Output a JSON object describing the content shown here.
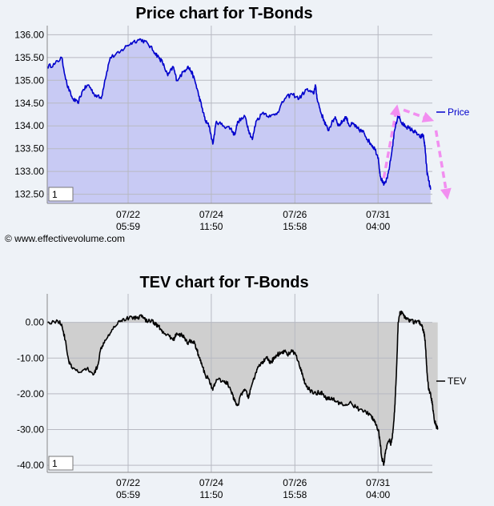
{
  "copyright": "© www.effectivevolume.com",
  "chart_data": [
    {
      "type": "area",
      "title": "Price chart for T-Bonds",
      "series": [
        {
          "name": "Price",
          "color": "#0000cc",
          "fill": "#c8caf4"
        }
      ],
      "ylim": [
        132.3,
        136.2
      ],
      "yticks": [
        "136.00",
        "135.50",
        "135.00",
        "134.50",
        "134.00",
        "133.50",
        "133.00",
        "132.50"
      ],
      "ytick_values": [
        136.0,
        135.5,
        135.0,
        134.5,
        134.0,
        133.5,
        133.0,
        132.5
      ],
      "xticks": [
        {
          "date": "07/22",
          "time": "05:59",
          "t": 0.21
        },
        {
          "date": "07/24",
          "time": "11:50",
          "t": 0.426
        },
        {
          "date": "07/26",
          "time": "15:58",
          "t": 0.643
        },
        {
          "date": "07/31",
          "time": "04:00",
          "t": 0.859
        }
      ],
      "input_value": "1",
      "keypoints": [
        [
          0,
          135.3
        ],
        [
          0.02,
          135.35
        ],
        [
          0.04,
          135.5
        ],
        [
          0.055,
          134.9
        ],
        [
          0.07,
          134.6
        ],
        [
          0.085,
          134.5
        ],
        [
          0.1,
          134.8
        ],
        [
          0.115,
          134.9
        ],
        [
          0.13,
          134.7
        ],
        [
          0.15,
          134.6
        ],
        [
          0.16,
          135.0
        ],
        [
          0.175,
          135.5
        ],
        [
          0.2,
          135.6
        ],
        [
          0.22,
          135.75
        ],
        [
          0.24,
          135.85
        ],
        [
          0.26,
          135.9
        ],
        [
          0.28,
          135.8
        ],
        [
          0.3,
          135.6
        ],
        [
          0.31,
          135.5
        ],
        [
          0.32,
          135.4
        ],
        [
          0.335,
          135.1
        ],
        [
          0.35,
          135.3
        ],
        [
          0.36,
          135.0
        ],
        [
          0.38,
          135.2
        ],
        [
          0.39,
          135.3
        ],
        [
          0.4,
          135.2
        ],
        [
          0.41,
          135.0
        ],
        [
          0.42,
          134.7
        ],
        [
          0.43,
          134.4
        ],
        [
          0.44,
          134.1
        ],
        [
          0.45,
          134.0
        ],
        [
          0.46,
          133.6
        ],
        [
          0.47,
          134.1
        ],
        [
          0.49,
          134.0
        ],
        [
          0.51,
          133.95
        ],
        [
          0.52,
          133.8
        ],
        [
          0.53,
          134.1
        ],
        [
          0.55,
          134.2
        ],
        [
          0.56,
          133.9
        ],
        [
          0.57,
          133.7
        ],
        [
          0.58,
          134.1
        ],
        [
          0.6,
          134.3
        ],
        [
          0.62,
          134.2
        ],
        [
          0.64,
          134.3
        ],
        [
          0.66,
          134.6
        ],
        [
          0.68,
          134.7
        ],
        [
          0.7,
          134.6
        ],
        [
          0.72,
          134.8
        ],
        [
          0.74,
          134.7
        ],
        [
          0.745,
          134.9
        ],
        [
          0.75,
          134.6
        ],
        [
          0.76,
          134.3
        ],
        [
          0.77,
          134.1
        ],
        [
          0.78,
          133.9
        ],
        [
          0.79,
          134.05
        ],
        [
          0.8,
          134.2
        ],
        [
          0.81,
          134.0
        ],
        [
          0.82,
          134.1
        ],
        [
          0.83,
          134.2
        ],
        [
          0.84,
          134.0
        ],
        [
          0.85,
          134.05
        ],
        [
          0.86,
          133.95
        ],
        [
          0.87,
          133.9
        ],
        [
          0.88,
          133.85
        ],
        [
          0.89,
          133.7
        ],
        [
          0.9,
          133.6
        ],
        [
          0.91,
          133.5
        ],
        [
          0.92,
          133.3
        ],
        [
          0.925,
          132.9
        ],
        [
          0.935,
          132.7
        ],
        [
          0.945,
          132.85
        ],
        [
          0.955,
          133.3
        ],
        [
          0.965,
          133.9
        ],
        [
          0.975,
          134.25
        ],
        [
          0.985,
          134.05
        ],
        [
          0.995,
          134.0
        ],
        [
          1.005,
          133.95
        ],
        [
          1.015,
          133.9
        ],
        [
          1.025,
          133.85
        ],
        [
          1.035,
          133.75
        ],
        [
          1.045,
          133.8
        ],
        [
          1.05,
          133.5
        ],
        [
          1.055,
          133.0
        ],
        [
          1.06,
          132.8
        ],
        [
          1.065,
          132.6
        ]
      ],
      "annotations": [
        {
          "kind": "dashed-arrow",
          "color": "#f28ef0",
          "from": [
            0.935,
            132.85
          ],
          "to": [
            0.97,
            134.35
          ]
        },
        {
          "kind": "dashed-arrow",
          "color": "#f28ef0",
          "from": [
            0.99,
            134.35
          ],
          "to": [
            1.06,
            134.15
          ]
        },
        {
          "kind": "dashed-arrow",
          "color": "#f28ef0",
          "from": [
            1.08,
            133.9
          ],
          "to": [
            1.11,
            132.5
          ]
        }
      ]
    },
    {
      "type": "area",
      "title": "TEV chart for T-Bonds",
      "series": [
        {
          "name": "TEV",
          "color": "#000000",
          "fill": "#cfcfcf"
        }
      ],
      "ylim": [
        -42,
        8
      ],
      "yticks": [
        "0.00",
        "-10.00",
        "-20.00",
        "-30.00",
        "-40.00"
      ],
      "ytick_values": [
        0,
        -10,
        -20,
        -30,
        -40
      ],
      "xticks": [
        {
          "date": "07/22",
          "time": "05:59",
          "t": 0.21
        },
        {
          "date": "07/24",
          "time": "11:50",
          "t": 0.426
        },
        {
          "date": "07/26",
          "time": "15:58",
          "t": 0.643
        },
        {
          "date": "07/31",
          "time": "04:00",
          "t": 0.859
        }
      ],
      "input_value": "1",
      "keypoints": [
        [
          0,
          0
        ],
        [
          0.03,
          0.3
        ],
        [
          0.04,
          -0.5
        ],
        [
          0.05,
          -5
        ],
        [
          0.06,
          -11
        ],
        [
          0.07,
          -13
        ],
        [
          0.09,
          -14
        ],
        [
          0.11,
          -13
        ],
        [
          0.13,
          -14.5
        ],
        [
          0.14,
          -12
        ],
        [
          0.15,
          -7
        ],
        [
          0.16,
          -5
        ],
        [
          0.18,
          -2
        ],
        [
          0.2,
          0.5
        ],
        [
          0.22,
          1
        ],
        [
          0.24,
          1.5
        ],
        [
          0.25,
          1.2
        ],
        [
          0.26,
          2
        ],
        [
          0.27,
          1.0
        ],
        [
          0.28,
          0.2
        ],
        [
          0.29,
          0.8
        ],
        [
          0.3,
          -0.5
        ],
        [
          0.31,
          -1
        ],
        [
          0.32,
          -3
        ],
        [
          0.34,
          -4
        ],
        [
          0.35,
          -5
        ],
        [
          0.36,
          -3
        ],
        [
          0.37,
          -3.5
        ],
        [
          0.38,
          -4
        ],
        [
          0.39,
          -6
        ],
        [
          0.4,
          -5
        ],
        [
          0.41,
          -6
        ],
        [
          0.42,
          -9
        ],
        [
          0.43,
          -12
        ],
        [
          0.44,
          -15
        ],
        [
          0.45,
          -16
        ],
        [
          0.46,
          -19
        ],
        [
          0.47,
          -16
        ],
        [
          0.49,
          -16.5
        ],
        [
          0.5,
          -17
        ],
        [
          0.51,
          -19
        ],
        [
          0.52,
          -22
        ],
        [
          0.53,
          -23
        ],
        [
          0.54,
          -20
        ],
        [
          0.55,
          -19
        ],
        [
          0.56,
          -21
        ],
        [
          0.57,
          -17
        ],
        [
          0.58,
          -14
        ],
        [
          0.59,
          -12
        ],
        [
          0.6,
          -11
        ],
        [
          0.61,
          -10
        ],
        [
          0.62,
          -11.5
        ],
        [
          0.63,
          -10
        ],
        [
          0.64,
          -9
        ],
        [
          0.65,
          -8.5
        ],
        [
          0.66,
          -8
        ],
        [
          0.67,
          -9
        ],
        [
          0.68,
          -8
        ],
        [
          0.69,
          -9
        ],
        [
          0.7,
          -12
        ],
        [
          0.71,
          -15
        ],
        [
          0.72,
          -18
        ],
        [
          0.73,
          -19
        ],
        [
          0.74,
          -20
        ],
        [
          0.76,
          -19.5
        ],
        [
          0.77,
          -21
        ],
        [
          0.78,
          -21.5
        ],
        [
          0.79,
          -21
        ],
        [
          0.8,
          -22
        ],
        [
          0.82,
          -23
        ],
        [
          0.84,
          -22.5
        ],
        [
          0.86,
          -24
        ],
        [
          0.88,
          -25
        ],
        [
          0.9,
          -26
        ],
        [
          0.91,
          -28
        ],
        [
          0.92,
          -30
        ],
        [
          0.925,
          -34
        ],
        [
          0.93,
          -38
        ],
        [
          0.935,
          -40
        ],
        [
          0.94,
          -36
        ],
        [
          0.95,
          -33
        ],
        [
          0.955,
          -34
        ],
        [
          0.96,
          -31
        ],
        [
          0.965,
          -25
        ],
        [
          0.97,
          -15
        ],
        [
          0.975,
          0
        ],
        [
          0.98,
          3
        ],
        [
          0.99,
          2
        ],
        [
          1.0,
          1
        ],
        [
          1.01,
          0.5
        ],
        [
          1.02,
          0
        ],
        [
          1.03,
          0.5
        ],
        [
          1.04,
          -1
        ],
        [
          1.045,
          -2
        ],
        [
          1.05,
          -5
        ],
        [
          1.055,
          -14
        ],
        [
          1.06,
          -19
        ],
        [
          1.065,
          -20
        ],
        [
          1.07,
          -23
        ],
        [
          1.075,
          -27
        ],
        [
          1.08,
          -29
        ],
        [
          1.085,
          -29.5
        ]
      ]
    }
  ]
}
